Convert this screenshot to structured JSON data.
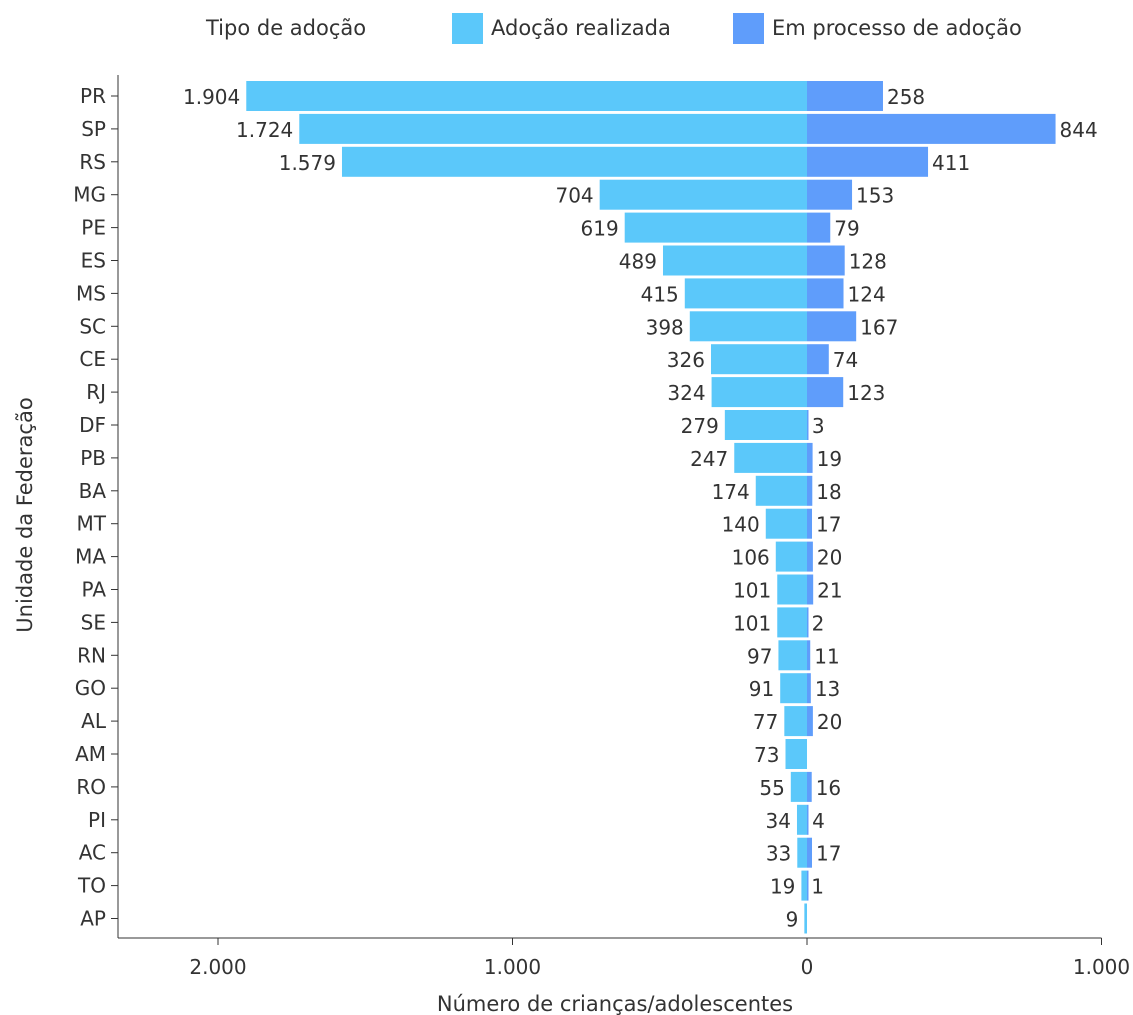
{
  "legend": {
    "title": "Tipo de adoção",
    "items": [
      {
        "label": "Adoção realizada",
        "color": "#5bc8fa"
      },
      {
        "label": "Em processo de adoção",
        "color": "#5f9dfb"
      }
    ]
  },
  "chart_data": {
    "type": "bar",
    "orientation": "horizontal-diverging",
    "xlabel": "Número de crianças/adolescentes",
    "ylabel": "Unidade da Federação",
    "xlim": [
      -2300,
      1000
    ],
    "xticks": [
      -2000,
      -1000,
      0,
      1000
    ],
    "xtick_labels": [
      "2.000",
      "1.000",
      "0",
      "1.000"
    ],
    "grid": false,
    "legend_position": "top",
    "categories": [
      "PR",
      "SP",
      "RS",
      "MG",
      "PE",
      "ES",
      "MS",
      "SC",
      "CE",
      "RJ",
      "DF",
      "PB",
      "BA",
      "MT",
      "MA",
      "PA",
      "SE",
      "RN",
      "GO",
      "AL",
      "AM",
      "RO",
      "PI",
      "AC",
      "TO",
      "AP"
    ],
    "series": [
      {
        "name": "Adoção realizada",
        "direction": "left",
        "color": "#5bc8fa",
        "values": [
          1904,
          1724,
          1579,
          704,
          619,
          489,
          415,
          398,
          326,
          324,
          279,
          247,
          174,
          140,
          106,
          101,
          101,
          97,
          91,
          77,
          73,
          55,
          34,
          33,
          19,
          9
        ],
        "labels": [
          "1.904",
          "1.724",
          "1.579",
          "704",
          "619",
          "489",
          "415",
          "398",
          "326",
          "324",
          "279",
          "247",
          "174",
          "140",
          "106",
          "101",
          "101",
          "97",
          "91",
          "77",
          "73",
          "55",
          "34",
          "33",
          "19",
          "9"
        ]
      },
      {
        "name": "Em processo de adoção",
        "direction": "right",
        "color": "#5f9dfb",
        "values": [
          258,
          844,
          411,
          153,
          79,
          128,
          124,
          167,
          74,
          123,
          3,
          19,
          18,
          17,
          20,
          21,
          2,
          11,
          13,
          20,
          0,
          16,
          4,
          17,
          1,
          0
        ],
        "labels": [
          "258",
          "844",
          "411",
          "153",
          "79",
          "128",
          "124",
          "167",
          "74",
          "123",
          "3",
          "19",
          "18",
          "17",
          "20",
          "21",
          "2",
          "11",
          "13",
          "20",
          "",
          "16",
          "4",
          "17",
          "1",
          ""
        ]
      }
    ]
  }
}
